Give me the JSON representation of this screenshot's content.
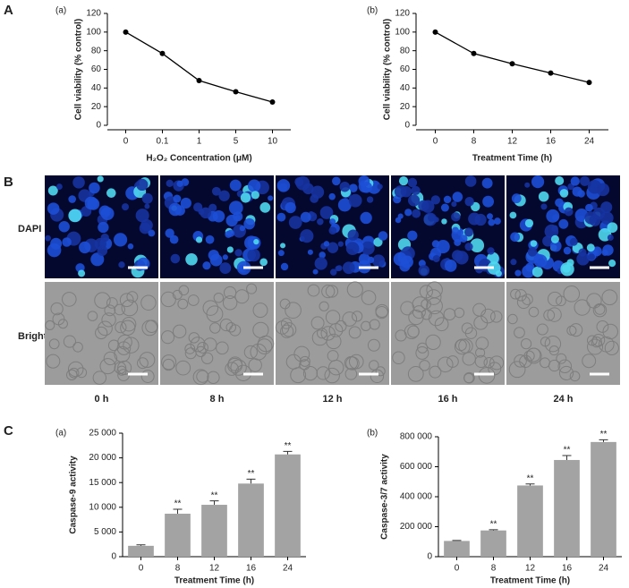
{
  "panel_letters": [
    "A",
    "B",
    "C"
  ],
  "microscopy": {
    "rows": [
      "DAPI",
      "Bright"
    ],
    "columns": [
      "0 h",
      "8 h",
      "12 h",
      "16 h",
      "24 h"
    ]
  },
  "chart_data": [
    {
      "type": "line",
      "panel": "(a)",
      "x_label": "H₂O₂ Concentration (μM)",
      "y_label": "Cell viability (% control)",
      "categories": [
        "0",
        "0.1",
        "1",
        "5",
        "10"
      ],
      "values": [
        100,
        77,
        48,
        36,
        25
      ],
      "color": "#000000",
      "ylim": [
        0,
        120
      ],
      "yticks": [
        0,
        20,
        40,
        60,
        80,
        100,
        120
      ]
    },
    {
      "type": "line",
      "panel": "(b)",
      "x_label": "Treatment Time (h)",
      "y_label": "Cell viability (% control)",
      "categories": [
        "0",
        "8",
        "12",
        "16",
        "24"
      ],
      "values": [
        100,
        77,
        66,
        56,
        46
      ],
      "color": "#000000",
      "ylim": [
        0,
        120
      ],
      "yticks": [
        0,
        20,
        40,
        60,
        80,
        100,
        120
      ]
    },
    {
      "type": "bar",
      "panel": "(a)",
      "x_label": "Treatment Time (h)",
      "y_label": "Caspase-9 activity",
      "categories": [
        "0",
        "8",
        "12",
        "16",
        "24"
      ],
      "values": [
        2200,
        8700,
        10500,
        14800,
        20700
      ],
      "errors": [
        200,
        900,
        800,
        900,
        600
      ],
      "annotations": [
        null,
        "**",
        "**",
        "**",
        "**"
      ],
      "color": "#a3a3a3",
      "ylim": [
        0,
        25000
      ],
      "yticks": [
        0,
        {
          "value": 5000,
          "label": "5 000"
        },
        {
          "value": 10000,
          "label": "10 000"
        },
        {
          "value": 15000,
          "label": "15 000"
        },
        {
          "value": 20000,
          "label": "20 000"
        },
        {
          "value": 25000,
          "label": "25 000"
        }
      ]
    },
    {
      "type": "bar",
      "panel": "(b)",
      "x_label": "Treatment Time (h)",
      "y_label": "Caspase-3/7 activity",
      "categories": [
        "0",
        "8",
        "12",
        "16",
        "24"
      ],
      "values": [
        105000,
        175000,
        475000,
        645000,
        765000
      ],
      "errors": [
        3000,
        5000,
        10000,
        30000,
        15000
      ],
      "annotations": [
        null,
        "**",
        "**",
        "**",
        "**"
      ],
      "color": "#a3a3a3",
      "ylim": [
        0,
        800000
      ],
      "yticks": [
        0,
        {
          "value": 200000,
          "label": "200 000"
        },
        {
          "value": 400000,
          "label": "400 000"
        },
        {
          "value": 600000,
          "label": "600 000"
        },
        {
          "value": 800000,
          "label": "800 000"
        }
      ]
    }
  ]
}
